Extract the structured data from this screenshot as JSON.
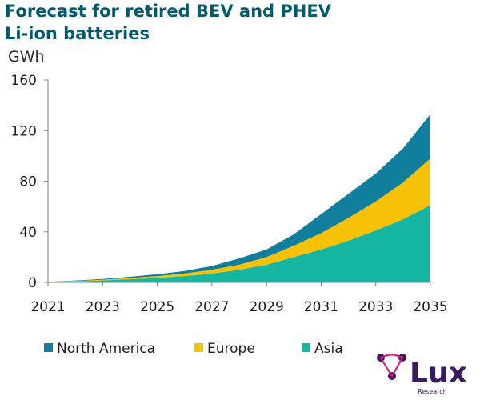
{
  "title_line1": "Forecast for retired BEV and PHEV",
  "title_line2": "Li-ion batteries",
  "unit": "GWh",
  "colors": {
    "north_america": "#107e9c",
    "europe": "#f7c106",
    "asia": "#15b7a3",
    "title": "#005a6e",
    "logo": "#3a1a5e",
    "logo_accent": "#e0147c"
  },
  "logo": {
    "text": "Lux",
    "sub": "Research"
  },
  "chart_data": {
    "type": "area",
    "stacked": true,
    "title": "Forecast for retired BEV and PHEV Li-ion batteries",
    "ylabel": "GWh",
    "xlabel": "",
    "ylim": [
      0,
      160
    ],
    "yticks": [
      0,
      40,
      80,
      120,
      160
    ],
    "xticks": [
      2021,
      2023,
      2025,
      2027,
      2029,
      2031,
      2033,
      2035
    ],
    "legend_position": "bottom",
    "grid": false,
    "x": [
      2021,
      2022,
      2023,
      2024,
      2025,
      2026,
      2027,
      2028,
      2029,
      2030,
      2031,
      2032,
      2033,
      2034,
      2035
    ],
    "series": [
      {
        "name": "Asia",
        "color_key": "asia",
        "values": [
          0.3,
          0.8,
          1.5,
          2.5,
          3.5,
          5,
          7,
          10,
          14,
          20,
          26,
          33,
          41,
          50,
          61
        ]
      },
      {
        "name": "Europe",
        "color_key": "europe",
        "values": [
          0.1,
          0.4,
          0.6,
          1,
          1.5,
          2,
          3,
          4,
          6,
          9,
          13,
          18,
          23,
          29,
          37
        ]
      },
      {
        "name": "North America",
        "color_key": "north_america",
        "values": [
          0.1,
          0.3,
          0.6,
          0.9,
          1.5,
          2,
          3,
          5,
          6,
          9,
          15,
          19,
          22,
          27,
          35
        ]
      }
    ],
    "legend_order": [
      "North America",
      "Europe",
      "Asia"
    ]
  }
}
